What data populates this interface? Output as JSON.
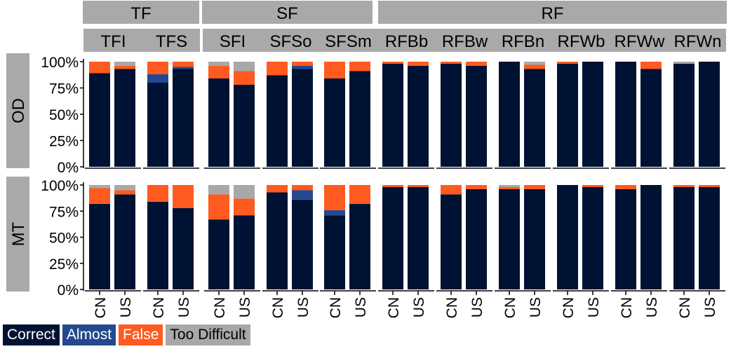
{
  "chart_data": {
    "type": "bar",
    "stacked": true,
    "normalized_percent": true,
    "groups": [
      {
        "name": "TF",
        "panels": [
          "TFI",
          "TFS"
        ]
      },
      {
        "name": "SF",
        "panels": [
          "SFI",
          "SFSo",
          "SFSm"
        ]
      },
      {
        "name": "RF",
        "panels": [
          "RFBb",
          "RFBw",
          "RFBn",
          "RFWb",
          "RFWw",
          "RFWn"
        ]
      }
    ],
    "panels": [
      "TFI",
      "TFS",
      "SFI",
      "SFSo",
      "SFSm",
      "RFBb",
      "RFBw",
      "RFBn",
      "RFWb",
      "RFWw",
      "RFWn"
    ],
    "rows": [
      "OD",
      "MT"
    ],
    "categories": [
      "CN",
      "US"
    ],
    "series": [
      {
        "name": "Correct",
        "color": "#001233"
      },
      {
        "name": "Almost",
        "color": "#25498e"
      },
      {
        "name": "False",
        "color": "#ff5a1f"
      },
      {
        "name": "Too Difficult",
        "color": "#a8a8a8"
      }
    ],
    "y_ticks": [
      "0%",
      "25%",
      "50%",
      "75%",
      "100%"
    ],
    "ylim": [
      0,
      100
    ],
    "legend_position": "bottom-left",
    "values": {
      "OD": {
        "TFI": {
          "CN": [
            89,
            0,
            11,
            0
          ],
          "US": [
            93,
            0,
            3,
            4
          ]
        },
        "TFS": {
          "CN": [
            80,
            8,
            12,
            0
          ],
          "US": [
            93,
            2,
            5,
            0
          ]
        },
        "SFI": {
          "CN": [
            84,
            0,
            12,
            4
          ],
          "US": [
            78,
            0,
            13,
            9
          ]
        },
        "SFSo": {
          "CN": [
            87,
            0,
            13,
            0
          ],
          "US": [
            93,
            3,
            4,
            0
          ]
        },
        "SFSm": {
          "CN": [
            84,
            0,
            16,
            0
          ],
          "US": [
            91,
            0,
            9,
            0
          ]
        },
        "RFBb": {
          "CN": [
            98,
            0,
            2,
            0
          ],
          "US": [
            96,
            0,
            4,
            0
          ]
        },
        "RFBw": {
          "CN": [
            98,
            0,
            2,
            0
          ],
          "US": [
            96,
            0,
            4,
            0
          ]
        },
        "RFBn": {
          "CN": [
            100,
            0,
            0,
            0
          ],
          "US": [
            93,
            0,
            4,
            3
          ]
        },
        "RFWb": {
          "CN": [
            98,
            0,
            2,
            0
          ],
          "US": [
            100,
            0,
            0,
            0
          ]
        },
        "RFWw": {
          "CN": [
            100,
            0,
            0,
            0
          ],
          "US": [
            93,
            0,
            7,
            0
          ]
        },
        "RFWn": {
          "CN": [
            98,
            0,
            0,
            2
          ],
          "US": [
            100,
            0,
            0,
            0
          ]
        }
      },
      "MT": {
        "TFI": {
          "CN": [
            82,
            0,
            15,
            3
          ],
          "US": [
            91,
            0,
            4,
            5
          ]
        },
        "TFS": {
          "CN": [
            84,
            0,
            16,
            0
          ],
          "US": [
            78,
            0,
            22,
            0
          ]
        },
        "SFI": {
          "CN": [
            67,
            0,
            24,
            9
          ],
          "US": [
            71,
            0,
            16,
            13
          ]
        },
        "SFSo": {
          "CN": [
            93,
            0,
            7,
            0
          ],
          "US": [
            86,
            9,
            5,
            0
          ]
        },
        "SFSm": {
          "CN": [
            71,
            5,
            24,
            0
          ],
          "US": [
            82,
            0,
            18,
            0
          ]
        },
        "RFBb": {
          "CN": [
            98,
            0,
            2,
            0
          ],
          "US": [
            98,
            0,
            2,
            0
          ]
        },
        "RFBw": {
          "CN": [
            91,
            0,
            9,
            0
          ],
          "US": [
            96,
            0,
            4,
            0
          ]
        },
        "RFBn": {
          "CN": [
            96,
            0,
            2,
            2
          ],
          "US": [
            96,
            0,
            4,
            0
          ]
        },
        "RFWb": {
          "CN": [
            100,
            0,
            0,
            0
          ],
          "US": [
            98,
            0,
            2,
            0
          ]
        },
        "RFWw": {
          "CN": [
            96,
            0,
            4,
            0
          ],
          "US": [
            100,
            0,
            0,
            0
          ]
        },
        "RFWn": {
          "CN": [
            98,
            0,
            2,
            0
          ],
          "US": [
            98,
            0,
            2,
            0
          ]
        }
      }
    }
  }
}
